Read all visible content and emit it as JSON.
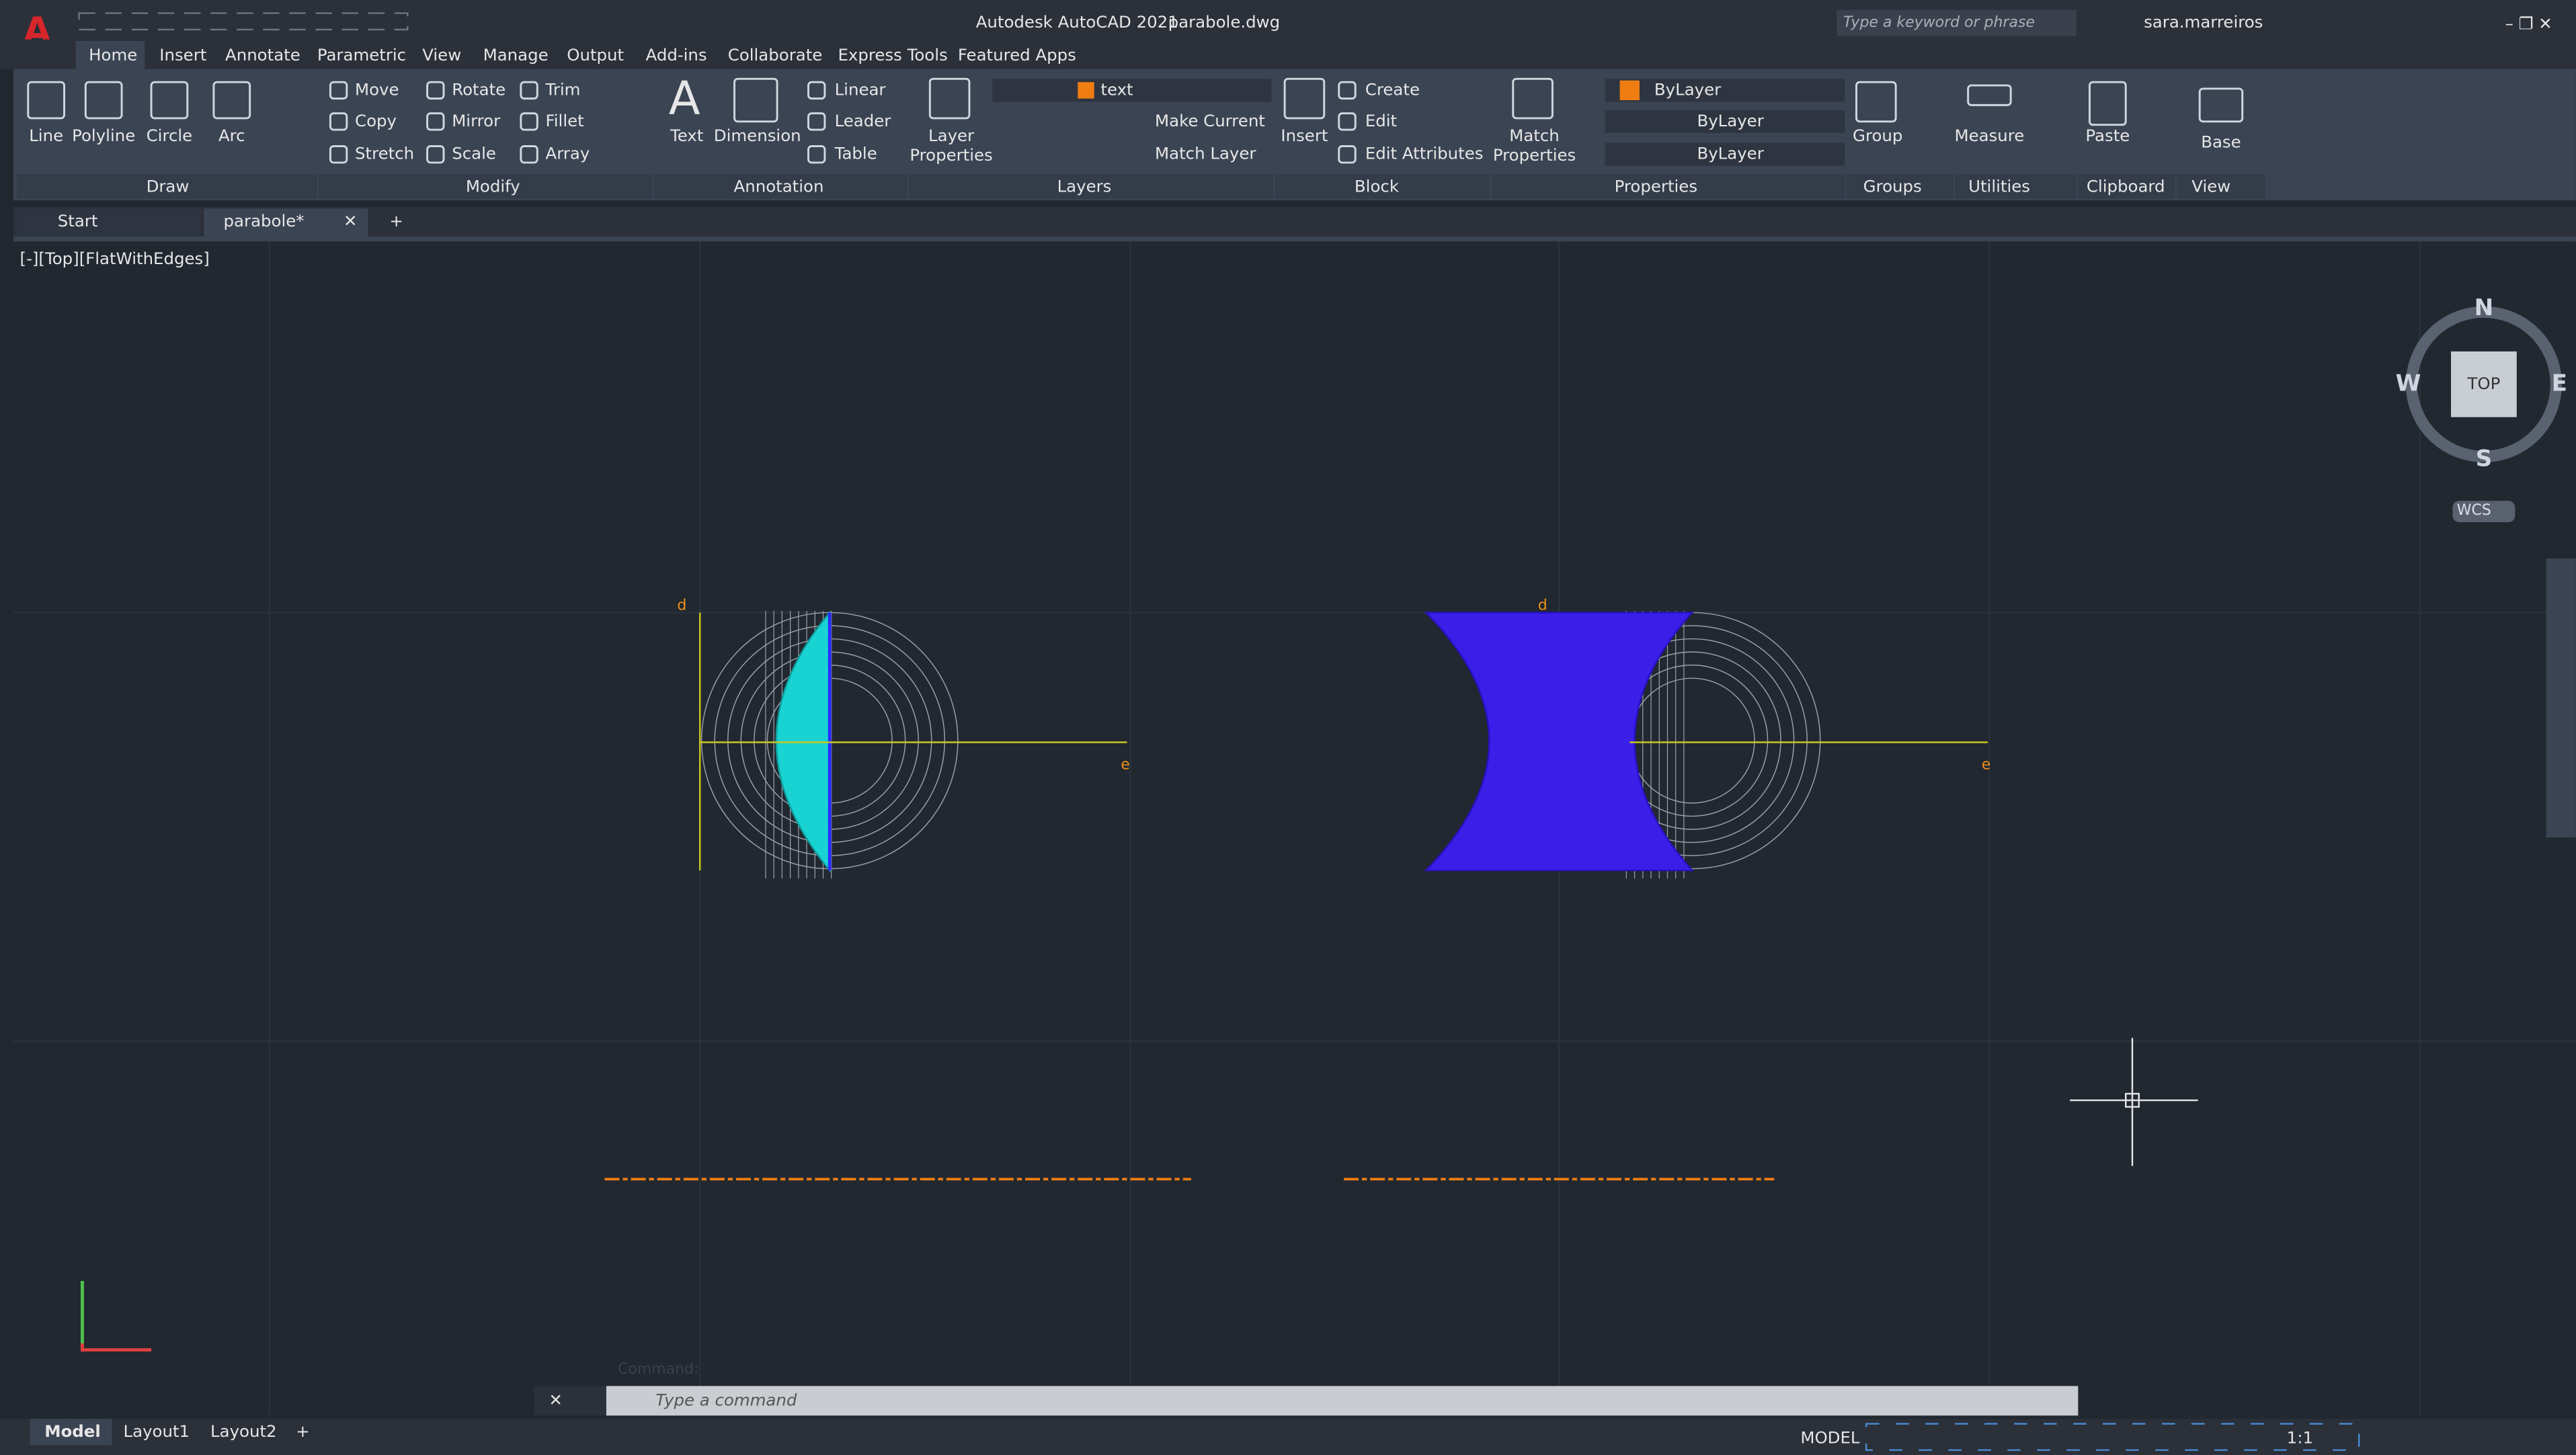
{
  "app": {
    "title": "Autodesk AutoCAD 2021",
    "file": "parabole.dwg",
    "search": "Type a keyword or phrase",
    "user": "sara.marreiros"
  },
  "menu_tabs": [
    "Home",
    "Insert",
    "Annotate",
    "Parametric",
    "View",
    "Manage",
    "Output",
    "Add-ins",
    "Collaborate",
    "Express Tools",
    "Featured Apps"
  ],
  "ribbon": {
    "draw": [
      "Line",
      "Polyline",
      "Circle",
      "Arc"
    ],
    "modify": [
      "Move",
      "Rotate",
      "Trim",
      "Copy",
      "Mirror",
      "Fillet",
      "Stretch",
      "Scale",
      "Array"
    ],
    "annotation": [
      "Text",
      "Dimension",
      "Linear",
      "Leader",
      "Table"
    ],
    "layers": {
      "properties": [
        "Layer",
        "Properties"
      ],
      "current": "text",
      "make_current": "Make Current",
      "match_layer": "Match Layer"
    },
    "block": [
      "Insert",
      "Create",
      "Edit",
      "Edit Attributes"
    ],
    "properties": {
      "match": [
        "Match",
        "Properties"
      ],
      "color": "ByLayer",
      "linetype": "ByLayer",
      "lineweight": "ByLayer"
    },
    "groups": "Group",
    "utilities": "Measure",
    "clipboard": "Paste",
    "view": "Base",
    "panels": [
      "Draw",
      "Modify",
      "Annotation",
      "Layers",
      "Block",
      "Properties",
      "Groups",
      "Utilities",
      "Clipboard",
      "View"
    ]
  },
  "doc_tabs": [
    "Start",
    "parabole*"
  ],
  "viewport": "[-][Top][FlatWithEdges]",
  "viewcube": {
    "north": "N",
    "south": "S",
    "west": "W",
    "east": "E",
    "face": "TOP",
    "ucs": "WCS"
  },
  "drawing_labels": [
    "d",
    "e",
    "d",
    "e"
  ],
  "command": {
    "history": "Command:",
    "placeholder": "Type a command"
  },
  "layouts": [
    "Model",
    "Layout1",
    "Layout2"
  ],
  "status": {
    "mode": "MODEL",
    "scale": "1:1"
  }
}
